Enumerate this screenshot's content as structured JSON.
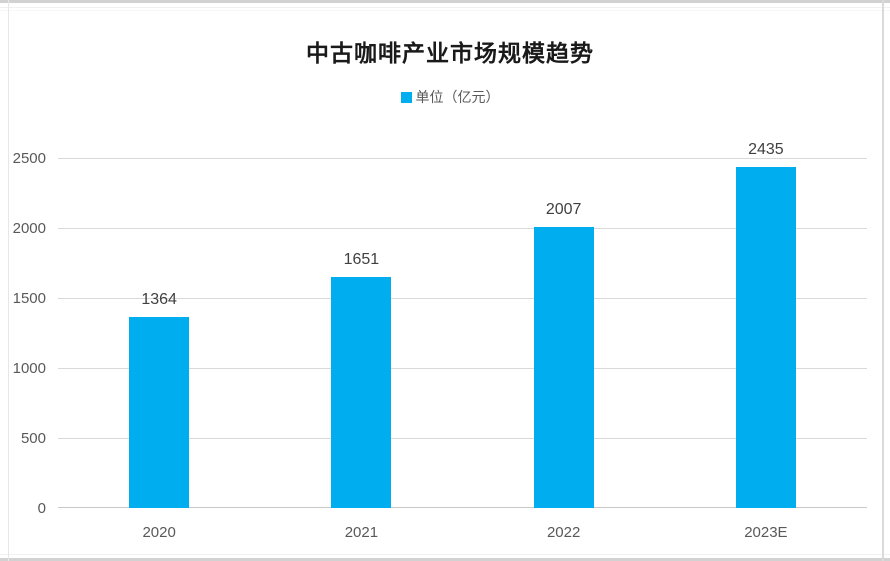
{
  "chart_data": {
    "type": "bar",
    "title": "中古咖啡产业市场规模趋势",
    "legend": "单位（亿元）",
    "legend_position": "top",
    "categories": [
      "2020",
      "2021",
      "2022",
      "2023E"
    ],
    "values": [
      1364,
      1651,
      2007,
      2435
    ],
    "yticks": [
      0,
      500,
      1000,
      1500,
      2000,
      2500
    ],
    "ylim": [
      0,
      2500
    ],
    "xlabel": "",
    "ylabel": "",
    "grid": true,
    "bar_color": "#00AEEF",
    "gridline_color": "#D9D9D9",
    "axis_line_color": "#C9C9C9",
    "value_label_color": "#404040",
    "axis_text_color": "#595959",
    "title_color": "#1A1A1A"
  }
}
